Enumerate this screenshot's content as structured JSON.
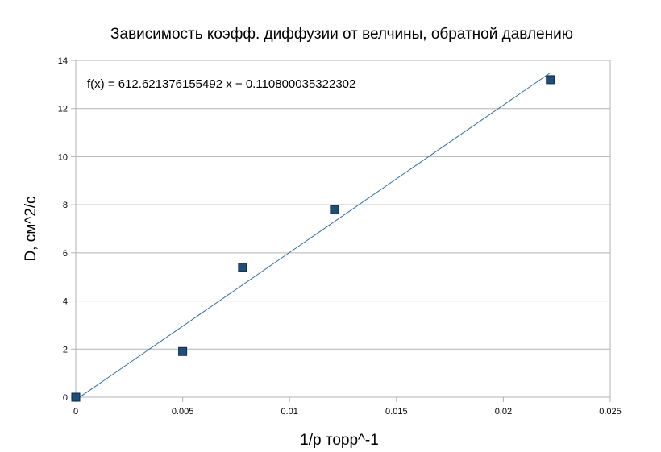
{
  "chart_data": {
    "type": "scatter",
    "title": "Зависимость коэфф. диффузии от велчины, обратной давлению",
    "xlabel": "1/p торр^-1",
    "ylabel": "D, см^2/с",
    "xlim": [
      0,
      0.025
    ],
    "ylim": [
      0,
      14
    ],
    "x_ticks": [
      "0",
      "0.005",
      "0.01",
      "0.015",
      "0.02",
      "0.025"
    ],
    "y_ticks": [
      "0",
      "2",
      "4",
      "6",
      "8",
      "10",
      "12",
      "14"
    ],
    "grid": "horizontal",
    "legend": "none",
    "marker_color": "#1f4e79",
    "trendline_color": "#2e6da4",
    "points": [
      {
        "x": 0,
        "y": 0
      },
      {
        "x": 0.005,
        "y": 1.9
      },
      {
        "x": 0.0078,
        "y": 5.4
      },
      {
        "x": 0.0121,
        "y": 7.8
      },
      {
        "x": 0.0222,
        "y": 13.2
      }
    ],
    "trendline": {
      "slope": 612.621376155492,
      "intercept": -0.110800035322302,
      "x_range": [
        0,
        0.0222
      ],
      "equation": "f(x) = 612.621376155492 x − 0.110800035322302"
    }
  }
}
